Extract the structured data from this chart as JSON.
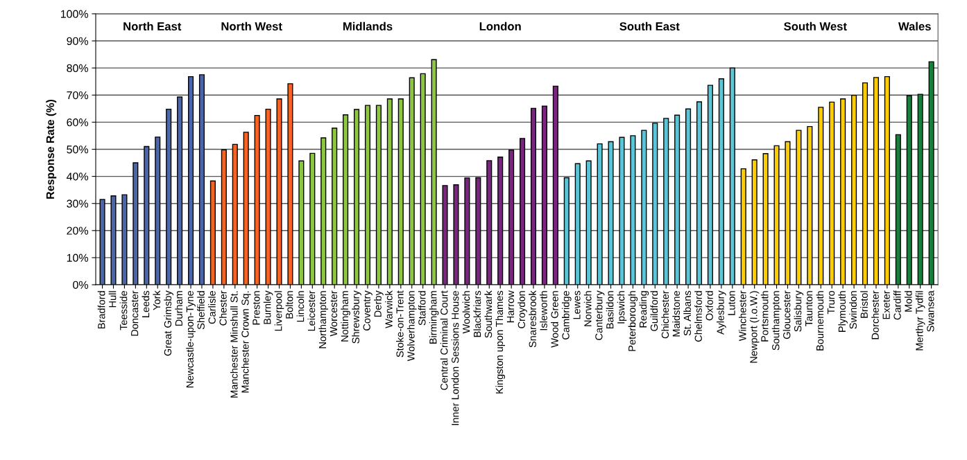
{
  "chart_data": {
    "type": "bar",
    "ylabel": "Response Rate (%)",
    "categories": [
      "Bradford",
      "Hull",
      "Teesside",
      "Doncaster",
      "Leeds",
      "York",
      "Great Grimsby",
      "Durham",
      "Newcastle-upon-Tyne",
      "Sheffield",
      "Carlisle",
      "Chester",
      "Manchester Minshull St.",
      "Manchester Crown Sq.",
      "Preston",
      "Burnley",
      "Liverpool",
      "Bolton",
      "Lincoln",
      "Leicester",
      "Northampton",
      "Worcester",
      "Nottingham",
      "Shrewsbury",
      "Coventry",
      "Derby",
      "Warwick",
      "Stoke-on-Trent",
      "Wolverhampton",
      "Stafford",
      "Birmingham",
      "Central Criminal Court",
      "Inner London Sessions House",
      "Woolwich",
      "Blackfriars",
      "Southwark",
      "Kingston upon Thames",
      "Harrow",
      "Croydon",
      "Snaresbrook",
      "Isleworth",
      "Wood Green",
      "Cambridge",
      "Lewes",
      "Norwich",
      "Canterbury",
      "Basildon",
      "Ipswich",
      "Peterborough",
      "Reading",
      "Guildford",
      "Chichester",
      "Maidstone",
      "St. Albans",
      "Chelmsford",
      "Oxford",
      "Aylesbury",
      "Luton",
      "Winchester",
      "Newport (I.o.W.)",
      "Portsmouth",
      "Southampton",
      "Gloucester",
      "Salisbury",
      "Taunton",
      "Bournemouth",
      "Truro",
      "Plymouth",
      "Swindon",
      "Bristol",
      "Dorchester",
      "Exeter",
      "Cardiff",
      "Mold",
      "Merthyr Tydfil",
      "Swansea"
    ],
    "values": [
      31.5,
      32.8,
      33.2,
      45,
      51,
      54.5,
      64.8,
      69.3,
      76.8,
      77.5,
      38.3,
      49.8,
      51.8,
      56.3,
      62.5,
      64.8,
      68.6,
      74.2,
      45.7,
      48.5,
      54.2,
      57.8,
      62.7,
      64.7,
      66.2,
      66.2,
      68.6,
      68.6,
      76.4,
      77.9,
      83.1,
      36.6,
      36.9,
      39.4,
      39.5,
      45.8,
      47.1,
      49.7,
      54,
      65.1,
      65.9,
      73.3,
      39.5,
      44.7,
      45.7,
      52,
      52.8,
      54.4,
      55,
      57,
      59.6,
      61.4,
      62.6,
      64.9,
      67.5,
      73.6,
      76,
      80,
      42.8,
      46.1,
      48.4,
      51.3,
      52.8,
      57,
      58.4,
      65.5,
      67.4,
      68.6,
      69.9,
      74.5,
      76.5,
      76.8,
      55.4,
      69.8,
      70.3,
      82.3
    ],
    "colors": [
      "#4a66ac",
      "#4a66ac",
      "#4a66ac",
      "#4a66ac",
      "#4a66ac",
      "#4a66ac",
      "#4a66ac",
      "#4a66ac",
      "#4a66ac",
      "#4a66ac",
      "#f26522",
      "#f26522",
      "#f26522",
      "#f26522",
      "#f26522",
      "#f26522",
      "#f26522",
      "#f26522",
      "#8dc63f",
      "#8dc63f",
      "#8dc63f",
      "#8dc63f",
      "#8dc63f",
      "#8dc63f",
      "#8dc63f",
      "#8dc63f",
      "#8dc63f",
      "#8dc63f",
      "#8dc63f",
      "#8dc63f",
      "#8dc63f",
      "#7b2481",
      "#7b2481",
      "#7b2481",
      "#7b2481",
      "#7b2481",
      "#7b2481",
      "#7b2481",
      "#7b2481",
      "#7b2481",
      "#7b2481",
      "#7b2481",
      "#5bc5d5",
      "#5bc5d5",
      "#5bc5d5",
      "#5bc5d5",
      "#5bc5d5",
      "#5bc5d5",
      "#5bc5d5",
      "#5bc5d5",
      "#5bc5d5",
      "#5bc5d5",
      "#5bc5d5",
      "#5bc5d5",
      "#5bc5d5",
      "#5bc5d5",
      "#5bc5d5",
      "#5bc5d5",
      "#ffcc00",
      "#ffcc00",
      "#ffcc00",
      "#ffcc00",
      "#ffcc00",
      "#ffcc00",
      "#ffcc00",
      "#ffcc00",
      "#ffcc00",
      "#ffcc00",
      "#ffcc00",
      "#ffcc00",
      "#ffcc00",
      "#ffcc00",
      "#1a7f3c",
      "#1a7f3c",
      "#1a7f3c",
      "#1a7f3c"
    ],
    "annotations": [
      "North East",
      "North West",
      "Midlands",
      "London",
      "South East",
      "South West",
      "Wales"
    ],
    "ylim": [
      0,
      100
    ],
    "yticks": [
      {
        "value": 0,
        "label": "0%"
      },
      {
        "value": 10,
        "label": "10%"
      },
      {
        "value": 20,
        "label": "20%"
      },
      {
        "value": 30,
        "label": "30%"
      },
      {
        "value": 40,
        "label": "40%"
      },
      {
        "value": 50,
        "label": "50%"
      },
      {
        "value": 60,
        "label": "60%"
      },
      {
        "value": 70,
        "label": "70%"
      },
      {
        "value": 80,
        "label": "80%"
      },
      {
        "value": 90,
        "label": "90%"
      },
      {
        "value": 100,
        "label": "100%"
      }
    ],
    "grid": "y",
    "legend": false
  }
}
